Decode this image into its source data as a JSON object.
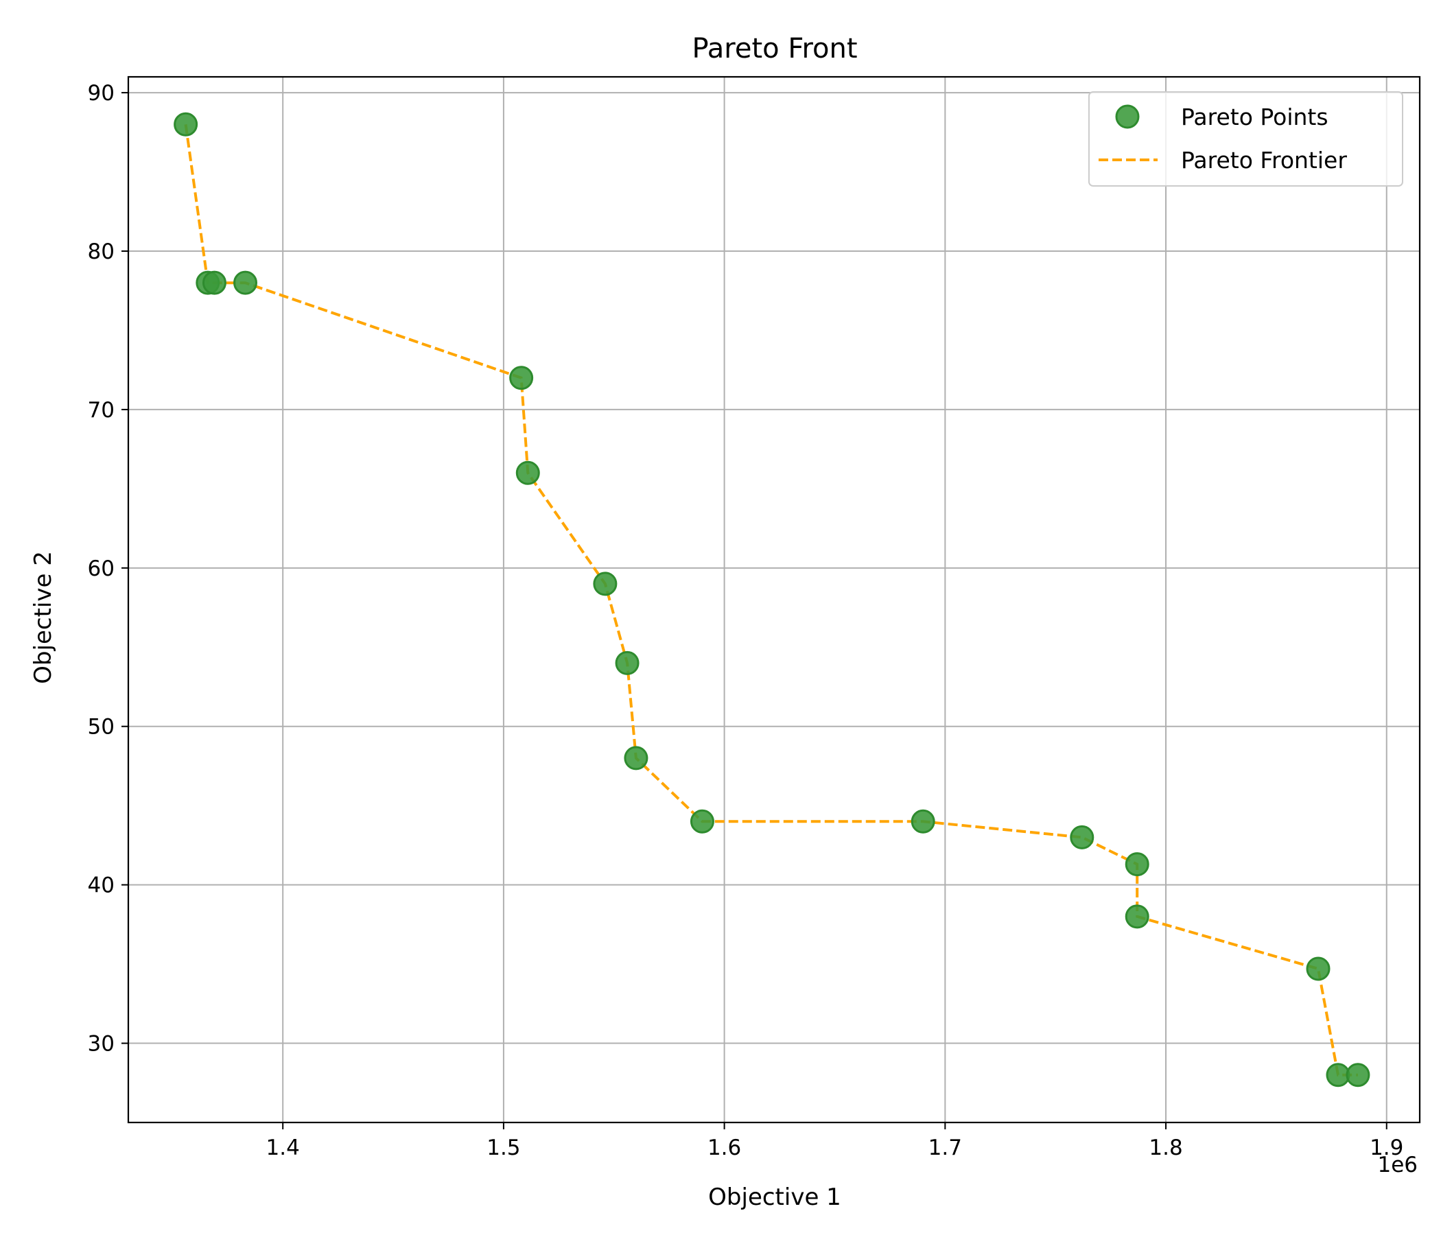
{
  "chart_data": {
    "type": "scatter",
    "title": "Pareto Front",
    "xlabel": "Objective 1",
    "ylabel": "Objective 2",
    "x_offset_text": "1e6",
    "xlim": [
      1.33,
      1.915
    ],
    "ylim": [
      25,
      91
    ],
    "xticks": [
      1.4,
      1.5,
      1.6,
      1.7,
      1.8,
      1.9
    ],
    "xtick_labels": [
      "1.4",
      "1.5",
      "1.6",
      "1.7",
      "1.8",
      "1.9"
    ],
    "yticks": [
      30,
      40,
      50,
      60,
      70,
      80,
      90
    ],
    "ytick_labels": [
      "30",
      "40",
      "50",
      "60",
      "70",
      "80",
      "90"
    ],
    "grid": true,
    "legend_position": "top-right",
    "colors": {
      "points_fill": "#3a9a3a",
      "points_edge": "#2e8b2e",
      "line": "#ffa500",
      "grid": "#b0b0b0",
      "axes": "#000000"
    },
    "series": [
      {
        "name": "Pareto Points",
        "kind": "scatter",
        "x": [
          1.356,
          1.366,
          1.369,
          1.383,
          1.508,
          1.511,
          1.546,
          1.556,
          1.56,
          1.59,
          1.69,
          1.762,
          1.787,
          1.787,
          1.869,
          1.878,
          1.887
        ],
        "y": [
          88,
          78,
          78,
          78,
          72,
          66,
          59,
          54,
          48,
          44,
          44,
          43,
          41.3,
          38,
          34.7,
          28,
          28
        ]
      },
      {
        "name": "Pareto Frontier",
        "kind": "line",
        "style": "dashed",
        "x": [
          1.356,
          1.366,
          1.369,
          1.383,
          1.508,
          1.511,
          1.546,
          1.556,
          1.56,
          1.59,
          1.69,
          1.762,
          1.787,
          1.787,
          1.869,
          1.878,
          1.887
        ],
        "y": [
          88,
          78,
          78,
          78,
          72,
          66,
          59,
          54,
          48,
          44,
          44,
          43,
          41.3,
          38,
          34.7,
          28,
          28
        ]
      }
    ]
  }
}
